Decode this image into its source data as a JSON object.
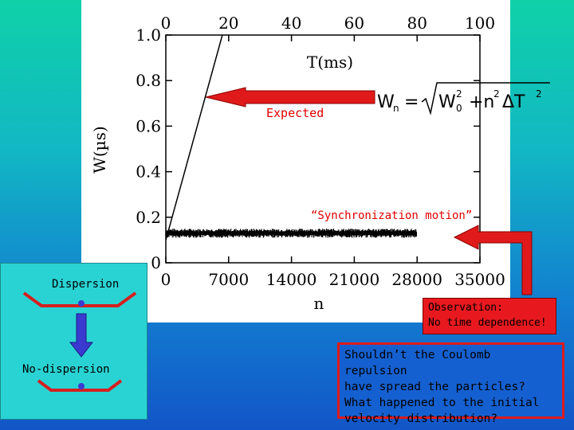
{
  "chart_data": {
    "type": "scatter",
    "ylabel": "W(µs)",
    "xlabel_bottom": "n",
    "xlabel_top": "T(ms)",
    "y_ticks": [
      "1.0",
      "0.8",
      "0.6",
      "0.4",
      "0.2",
      "0"
    ],
    "x_bottom_ticks": [
      "0",
      "7000",
      "14000",
      "21000",
      "28000",
      "35000"
    ],
    "x_top_ticks": [
      "0",
      "20",
      "40",
      "60",
      "80",
      "100"
    ],
    "ylim": [
      0,
      1.0
    ],
    "xlim_bottom": [
      0,
      35000
    ],
    "xlim_top": [
      0,
      100
    ],
    "expected_line": {
      "x": [
        0,
        18
      ],
      "y": [
        0.1,
        1.0
      ]
    },
    "measured_level": 0.13,
    "measured_noise": 0.02,
    "measured_range": [
      0,
      28000
    ],
    "formula": "Wn = √(W0² + n²ΔT²)",
    "annotations": {
      "expected": "Expected",
      "sync": "“Synchronization motion”"
    }
  },
  "diagram": {
    "dispersion": "Dispersion",
    "no_dispersion": "No-dispersion"
  },
  "observation": {
    "line1": "Observation:",
    "line2": "No time dependence!"
  },
  "question": {
    "line1": "Shouldn’t the Coulomb repulsion",
    "line2": "have spread the particles?",
    "line3": "What happened to the initial",
    "line4": "velocity distribution?"
  },
  "colors": {
    "arrow_red": "#e01a1a",
    "diagram_red": "#d42020",
    "diagram_blue": "#3a3ad0"
  }
}
